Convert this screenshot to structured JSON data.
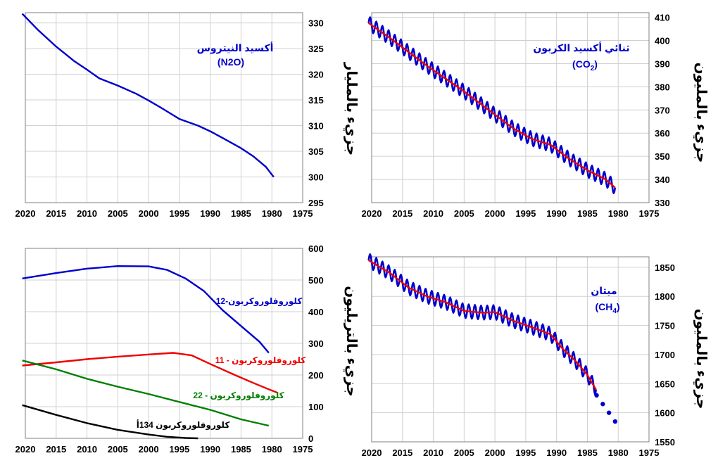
{
  "chart_data": [
    {
      "id": "n2o",
      "type": "line",
      "ylabel": "جزيء بالمليار",
      "xlim": [
        2020,
        1975
      ],
      "ylim": [
        295,
        332
      ],
      "xticks": [
        2020,
        2015,
        2010,
        2005,
        2000,
        1995,
        1990,
        1985,
        1980,
        1975
      ],
      "yticks": [
        295,
        300,
        305,
        310,
        315,
        320,
        325,
        330
      ],
      "grid": true,
      "annotations": [
        {
          "text": "أكسيد النيتروس",
          "color": "#0000cc"
        },
        {
          "text": "(N2O)",
          "color": "#0000cc"
        }
      ],
      "series": [
        {
          "color": "#0000cc",
          "style": "line",
          "x": [
            2020.5,
            2018,
            2015,
            2012,
            2010,
            2008,
            2005,
            2002,
            2000,
            1998,
            1995,
            1992,
            1990,
            1988,
            1985,
            1983,
            1981,
            1979.7
          ],
          "y": [
            331.8,
            328.7,
            325.4,
            322.5,
            320.9,
            319.2,
            317.8,
            316.2,
            314.9,
            313.5,
            311.3,
            310.0,
            308.9,
            307.6,
            305.6,
            304.0,
            302.0,
            300.0
          ]
        }
      ]
    },
    {
      "id": "co2",
      "type": "line",
      "ylabel": "جزيء بالمليون",
      "xlim": [
        2020,
        1975
      ],
      "ylim": [
        330,
        412
      ],
      "xticks": [
        2020,
        2015,
        2010,
        2005,
        2000,
        1995,
        1990,
        1985,
        1980,
        1975
      ],
      "yticks": [
        330,
        340,
        350,
        360,
        370,
        380,
        390,
        400,
        410
      ],
      "grid": true,
      "annotations": [
        {
          "text": "ثنائي أكسيد الكربون",
          "color": "#0000cc"
        },
        {
          "text": "(CO2)",
          "color": "#0000cc"
        }
      ],
      "series": [
        {
          "color": "#0000cc",
          "style": "seasonal",
          "amplitude": 3,
          "x": [
            2020.5,
            2017,
            2014,
            2011,
            2008,
            2005,
            2002,
            2000,
            1997,
            1994,
            1991,
            1988,
            1985,
            1982,
            1980.5
          ],
          "y": [
            407.5,
            401.0,
            395.0,
            389.0,
            383.5,
            378.0,
            372.0,
            368.0,
            362.0,
            357.5,
            355.0,
            349.0,
            344.0,
            340.0,
            336.5
          ]
        },
        {
          "color": "#ee0000",
          "style": "line",
          "x": [
            2020.5,
            2017,
            2014,
            2011,
            2008,
            2005,
            2002,
            2000,
            1997,
            1994,
            1991,
            1988,
            1985,
            1982,
            1980.5
          ],
          "y": [
            407.5,
            401.0,
            395.0,
            389.0,
            383.5,
            378.0,
            372.0,
            368.0,
            362.0,
            357.5,
            355.0,
            349.0,
            344.0,
            340.0,
            336.5
          ]
        }
      ]
    },
    {
      "id": "cfc",
      "type": "line",
      "ylabel": "جزيء بالتريليون",
      "xlim": [
        2020,
        1975
      ],
      "ylim": [
        0,
        600
      ],
      "xticks": [
        2020,
        2015,
        2010,
        2005,
        2000,
        1995,
        1990,
        1985,
        1980,
        1975
      ],
      "yticks": [
        0,
        100,
        200,
        300,
        400,
        500,
        600
      ],
      "grid": true,
      "annotations": [
        {
          "text": "كلوروفلوروكربون-12",
          "color": "#0000cc"
        },
        {
          "text": "كلوروفلوروكربون - 11",
          "color": "#ee0000"
        },
        {
          "text": "كلوروفلوروكربون - 22",
          "color": "#008000"
        },
        {
          "text": "كلوروفلوروكربون 134أ",
          "color": "#000000"
        }
      ],
      "series": [
        {
          "color": "#0000cc",
          "style": "line",
          "x": [
            2020.5,
            2015,
            2010,
            2005,
            2000,
            1997,
            1994,
            1991,
            1988,
            1985,
            1982,
            1980.5
          ],
          "y": [
            505,
            522,
            536,
            544,
            543,
            532,
            505,
            465,
            405,
            355,
            305,
            270
          ]
        },
        {
          "color": "#ee0000",
          "style": "line",
          "x": [
            2020.5,
            2015,
            2010,
            2005,
            2000,
            1996,
            1993,
            1990,
            1986,
            1983,
            1980.5,
            1979.2
          ],
          "y": [
            230,
            240,
            250,
            258,
            265,
            270,
            262,
            235,
            200,
            175,
            155,
            145
          ]
        },
        {
          "color": "#008000",
          "style": "line",
          "x": [
            2020.5,
            2015,
            2010,
            2005,
            2000,
            1995,
            1990,
            1985,
            1980.5
          ],
          "y": [
            246,
            218,
            188,
            163,
            140,
            115,
            90,
            60,
            40
          ]
        },
        {
          "color": "#000000",
          "style": "line",
          "x": [
            2020.5,
            2015,
            2010,
            2005,
            2000,
            1997,
            1994,
            1992
          ],
          "y": [
            105,
            74,
            48,
            27,
            12,
            5,
            1,
            0
          ]
        }
      ]
    },
    {
      "id": "ch4",
      "type": "line",
      "ylabel": "جزيء بالمليون",
      "xlim": [
        2020,
        1975
      ],
      "ylim": [
        1550,
        1868
      ],
      "xticks": [
        2020,
        2015,
        2010,
        2005,
        2000,
        1995,
        1990,
        1985,
        1980,
        1975
      ],
      "yticks": [
        1550,
        1600,
        1650,
        1700,
        1750,
        1800,
        1850
      ],
      "grid": true,
      "annotations": [
        {
          "text": "ميثان",
          "color": "#0000cc"
        },
        {
          "text": "(CH4)",
          "color": "#0000cc"
        }
      ],
      "series": [
        {
          "color": "#0000cc",
          "style": "seasonal",
          "amplitude": 12,
          "x": [
            2020.5,
            2017,
            2014,
            2011,
            2008,
            2005,
            2002,
            2000,
            1997,
            1994,
            1991,
            1989,
            1987,
            1985,
            1983.6
          ],
          "y": [
            1862,
            1840,
            1815,
            1800,
            1790,
            1775,
            1772,
            1773,
            1758,
            1747,
            1735,
            1710,
            1690,
            1665,
            1640
          ]
        },
        {
          "color": "#ee0000",
          "style": "line",
          "x": [
            2020.5,
            2017,
            2014,
            2011,
            2008,
            2005,
            2002,
            2000,
            1997,
            1994,
            1991,
            1989,
            1987,
            1985,
            1983.6
          ],
          "y": [
            1862,
            1840,
            1815,
            1800,
            1790,
            1775,
            1772,
            1773,
            1758,
            1747,
            1735,
            1710,
            1690,
            1665,
            1640
          ]
        },
        {
          "color": "#0000cc",
          "style": "dots",
          "x": [
            1983.5,
            1982.5,
            1981.5,
            1980.5
          ],
          "y": [
            1630,
            1615,
            1600,
            1585
          ]
        }
      ]
    }
  ]
}
